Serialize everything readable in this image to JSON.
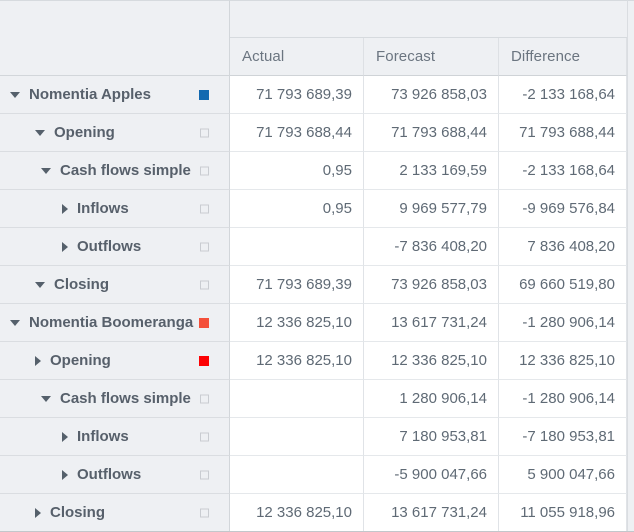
{
  "header": {
    "columns": [
      "Actual",
      "Forecast",
      "Difference"
    ]
  },
  "colors": {
    "row_background": "#eef0f3",
    "cell_background": "#ffffff",
    "border": "#d6dade",
    "text": "#5c6670",
    "marker_blue": "#1269b0",
    "marker_orange_red": "#f4503a",
    "marker_red": "#fc0204",
    "marker_outline_border": "#c9ccd1"
  },
  "icons": {
    "expanded_arrow": "triangle-down",
    "collapsed_arrow": "triangle-right"
  },
  "rows": [
    {
      "label": "Nomentia Apples",
      "level": 0,
      "state": "expanded",
      "marker": "blue",
      "actual": "71 793 689,39",
      "forecast": "73 926 858,03",
      "difference": "-2 133 168,64"
    },
    {
      "label": "Opening",
      "level": 1,
      "state": "expanded",
      "marker": "outline",
      "actual": "71 793 688,44",
      "forecast": "71 793 688,44",
      "difference": "71 793 688,44"
    },
    {
      "label": "Cash flows simple",
      "level": 2,
      "state": "expanded",
      "marker": "outline",
      "actual": "0,95",
      "forecast": "2 133 169,59",
      "difference": "-2 133 168,64"
    },
    {
      "label": "Inflows",
      "level": 3,
      "state": "collapsed",
      "marker": "outline",
      "actual": "0,95",
      "forecast": "9 969 577,79",
      "difference": "-9 969 576,84"
    },
    {
      "label": "Outflows",
      "level": 3,
      "state": "collapsed",
      "marker": "outline",
      "actual": "",
      "forecast": "-7 836 408,20",
      "difference": "7 836 408,20"
    },
    {
      "label": "Closing",
      "level": 1,
      "state": "expanded",
      "marker": "outline",
      "actual": "71 793 689,39",
      "forecast": "73 926 858,03",
      "difference": "69 660 519,80"
    },
    {
      "label": "Nomentia Boomeranga",
      "level": 0,
      "state": "expanded",
      "marker": "orange",
      "actual": "12 336 825,10",
      "forecast": "13 617 731,24",
      "difference": "-1 280 906,14"
    },
    {
      "label": "Opening",
      "level": 1,
      "state": "collapsed",
      "marker": "red",
      "actual": "12 336 825,10",
      "forecast": "12 336 825,10",
      "difference": "12 336 825,10"
    },
    {
      "label": "Cash flows simple",
      "level": 2,
      "state": "expanded",
      "marker": "outline",
      "actual": "",
      "forecast": "1 280 906,14",
      "difference": "-1 280 906,14"
    },
    {
      "label": "Inflows",
      "level": 3,
      "state": "collapsed",
      "marker": "outline",
      "actual": "",
      "forecast": "7 180 953,81",
      "difference": "-7 180 953,81"
    },
    {
      "label": "Outflows",
      "level": 3,
      "state": "collapsed",
      "marker": "outline",
      "actual": "",
      "forecast": "-5 900 047,66",
      "difference": "5 900 047,66"
    },
    {
      "label": "Closing",
      "level": 1,
      "state": "collapsed",
      "marker": "outline",
      "actual": "12 336 825,10",
      "forecast": "13 617 731,24",
      "difference": "11 055 918,96"
    }
  ]
}
